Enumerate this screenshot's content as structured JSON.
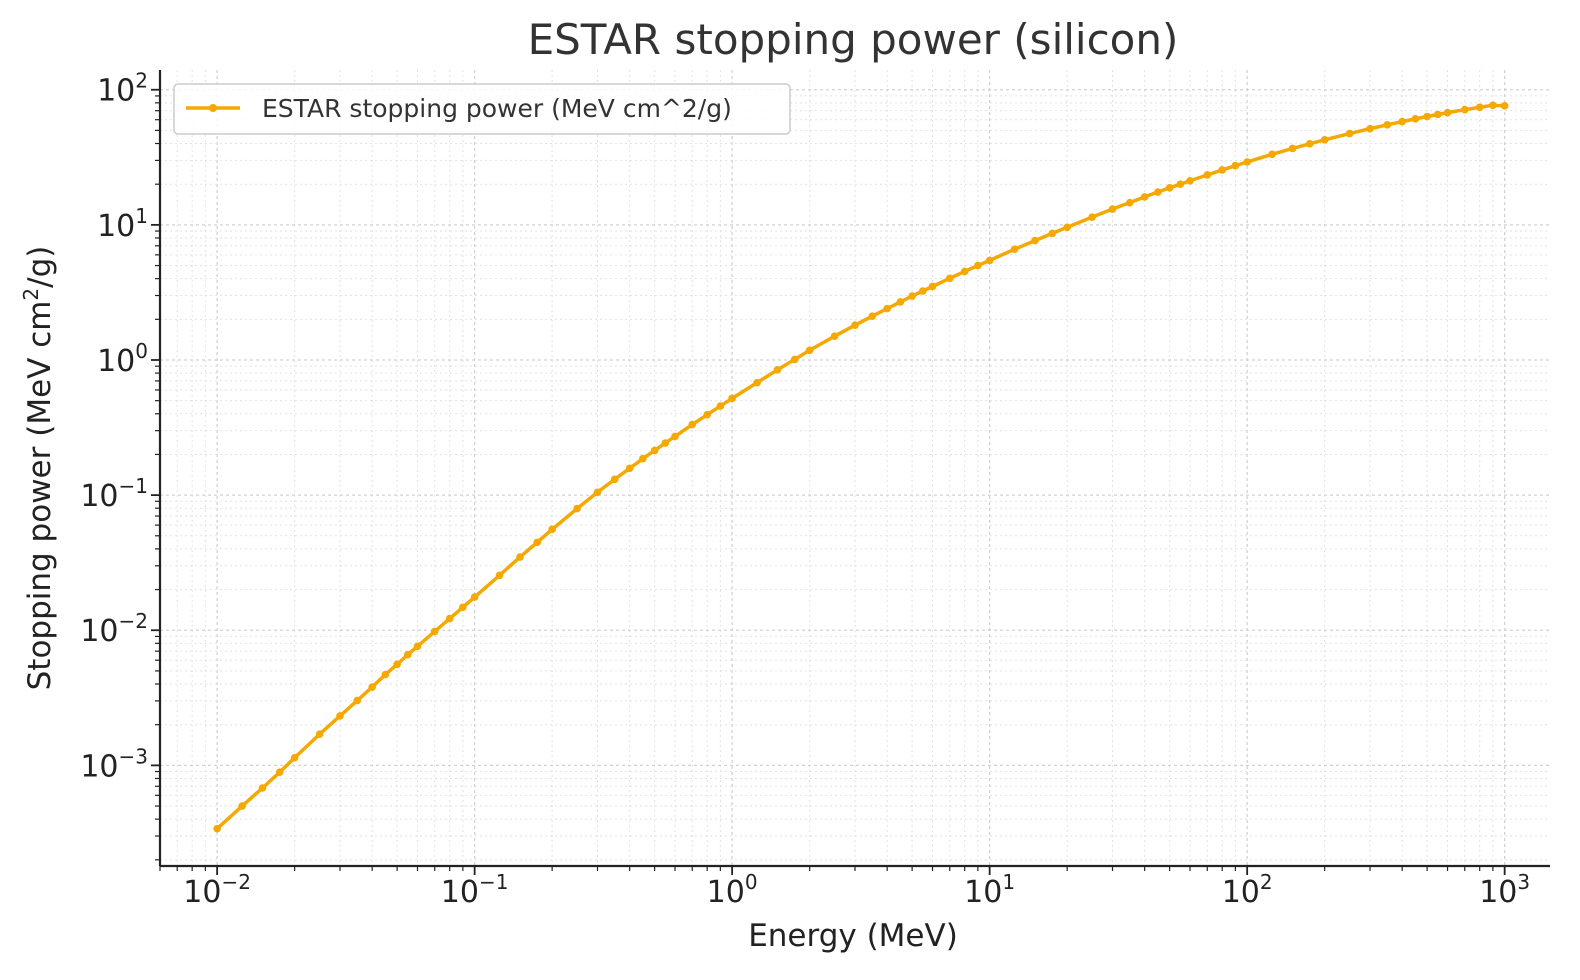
{
  "chart_data": {
    "type": "line",
    "title": "ESTAR stopping power (silicon)",
    "xlabel": "Energy (MeV)",
    "ylabel": "Stopping power (MeV cm²/g)",
    "ylabel_parts": {
      "before": "Stopping power (MeV cm",
      "sup": "2",
      "after": "/g)"
    },
    "x_scale": "log",
    "y_scale": "log",
    "xlim": [
      0.006,
      1500
    ],
    "ylim": [
      0.00018,
      140
    ],
    "x_ticks": [
      {
        "base": "10",
        "exp": "−2",
        "value": 0.01
      },
      {
        "base": "10",
        "exp": "−1",
        "value": 0.1
      },
      {
        "base": "10",
        "exp": "0",
        "value": 1
      },
      {
        "base": "10",
        "exp": "1",
        "value": 10
      },
      {
        "base": "10",
        "exp": "2",
        "value": 100
      },
      {
        "base": "10",
        "exp": "3",
        "value": 1000
      }
    ],
    "y_ticks": [
      {
        "base": "10",
        "exp": "−3",
        "value": 0.001
      },
      {
        "base": "10",
        "exp": "−2",
        "value": 0.01
      },
      {
        "base": "10",
        "exp": "−1",
        "value": 0.1
      },
      {
        "base": "10",
        "exp": "0",
        "value": 1
      },
      {
        "base": "10",
        "exp": "1",
        "value": 10
      },
      {
        "base": "10",
        "exp": "2",
        "value": 100
      }
    ],
    "grid": true,
    "legend_position": "top-left",
    "series": [
      {
        "name": "ESTAR stopping power (MeV cm^2/g)",
        "color": "#f5a800",
        "marker": "circle",
        "points": [
          [
            0.01,
            0.00034
          ],
          [
            0.0125,
            0.0005
          ],
          [
            0.015,
            0.00068
          ],
          [
            0.0175,
            0.00089
          ],
          [
            0.02,
            0.00114
          ],
          [
            0.025,
            0.0017
          ],
          [
            0.03,
            0.00232
          ],
          [
            0.035,
            0.00302
          ],
          [
            0.04,
            0.0038
          ],
          [
            0.045,
            0.0047
          ],
          [
            0.05,
            0.0056
          ],
          [
            0.055,
            0.0066
          ],
          [
            0.06,
            0.0076
          ],
          [
            0.07,
            0.0098
          ],
          [
            0.08,
            0.0122
          ],
          [
            0.09,
            0.0148
          ],
          [
            0.1,
            0.0176
          ],
          [
            0.125,
            0.0255
          ],
          [
            0.15,
            0.0348
          ],
          [
            0.175,
            0.0447
          ],
          [
            0.2,
            0.0558
          ],
          [
            0.25,
            0.0795
          ],
          [
            0.3,
            0.105
          ],
          [
            0.35,
            0.131
          ],
          [
            0.4,
            0.158
          ],
          [
            0.45,
            0.186
          ],
          [
            0.5,
            0.214
          ],
          [
            0.55,
            0.243
          ],
          [
            0.6,
            0.272
          ],
          [
            0.7,
            0.333
          ],
          [
            0.8,
            0.394
          ],
          [
            0.9,
            0.456
          ],
          [
            1.0,
            0.52
          ],
          [
            1.25,
            0.68
          ],
          [
            1.5,
            0.846
          ],
          [
            1.75,
            1.01
          ],
          [
            2.0,
            1.18
          ],
          [
            2.5,
            1.5
          ],
          [
            3.0,
            1.81
          ],
          [
            3.5,
            2.11
          ],
          [
            4.0,
            2.4
          ],
          [
            4.5,
            2.69
          ],
          [
            5.0,
            2.97
          ],
          [
            5.5,
            3.24
          ],
          [
            6.0,
            3.5
          ],
          [
            7.0,
            4.02
          ],
          [
            8.0,
            4.52
          ],
          [
            9.0,
            5.0
          ],
          [
            10.0,
            5.46
          ],
          [
            12.5,
            6.6
          ],
          [
            15.0,
            7.65
          ],
          [
            17.5,
            8.65
          ],
          [
            20.0,
            9.6
          ],
          [
            25.0,
            11.4
          ],
          [
            30.0,
            13.1
          ],
          [
            35.0,
            14.6
          ],
          [
            40.0,
            16.1
          ],
          [
            45.0,
            17.5
          ],
          [
            50.0,
            18.8
          ],
          [
            55.0,
            20.0
          ],
          [
            60.0,
            21.2
          ],
          [
            70.0,
            23.4
          ],
          [
            80.0,
            25.5
          ],
          [
            90.0,
            27.4
          ],
          [
            100.0,
            29.2
          ],
          [
            125.0,
            33.3
          ],
          [
            150.0,
            36.8
          ],
          [
            175.0,
            39.8
          ],
          [
            200.0,
            42.6
          ],
          [
            250.0,
            47.4
          ],
          [
            300.0,
            51.5
          ],
          [
            350.0,
            55.0
          ],
          [
            400.0,
            58.1
          ],
          [
            450.0,
            60.9
          ],
          [
            500.0,
            63.4
          ],
          [
            550.0,
            65.6
          ],
          [
            600.0,
            67.7
          ],
          [
            700.0,
            71.2
          ],
          [
            800.0,
            74.2
          ],
          [
            900.0,
            76.7
          ],
          [
            1000.0,
            76.0
          ]
        ]
      }
    ]
  }
}
